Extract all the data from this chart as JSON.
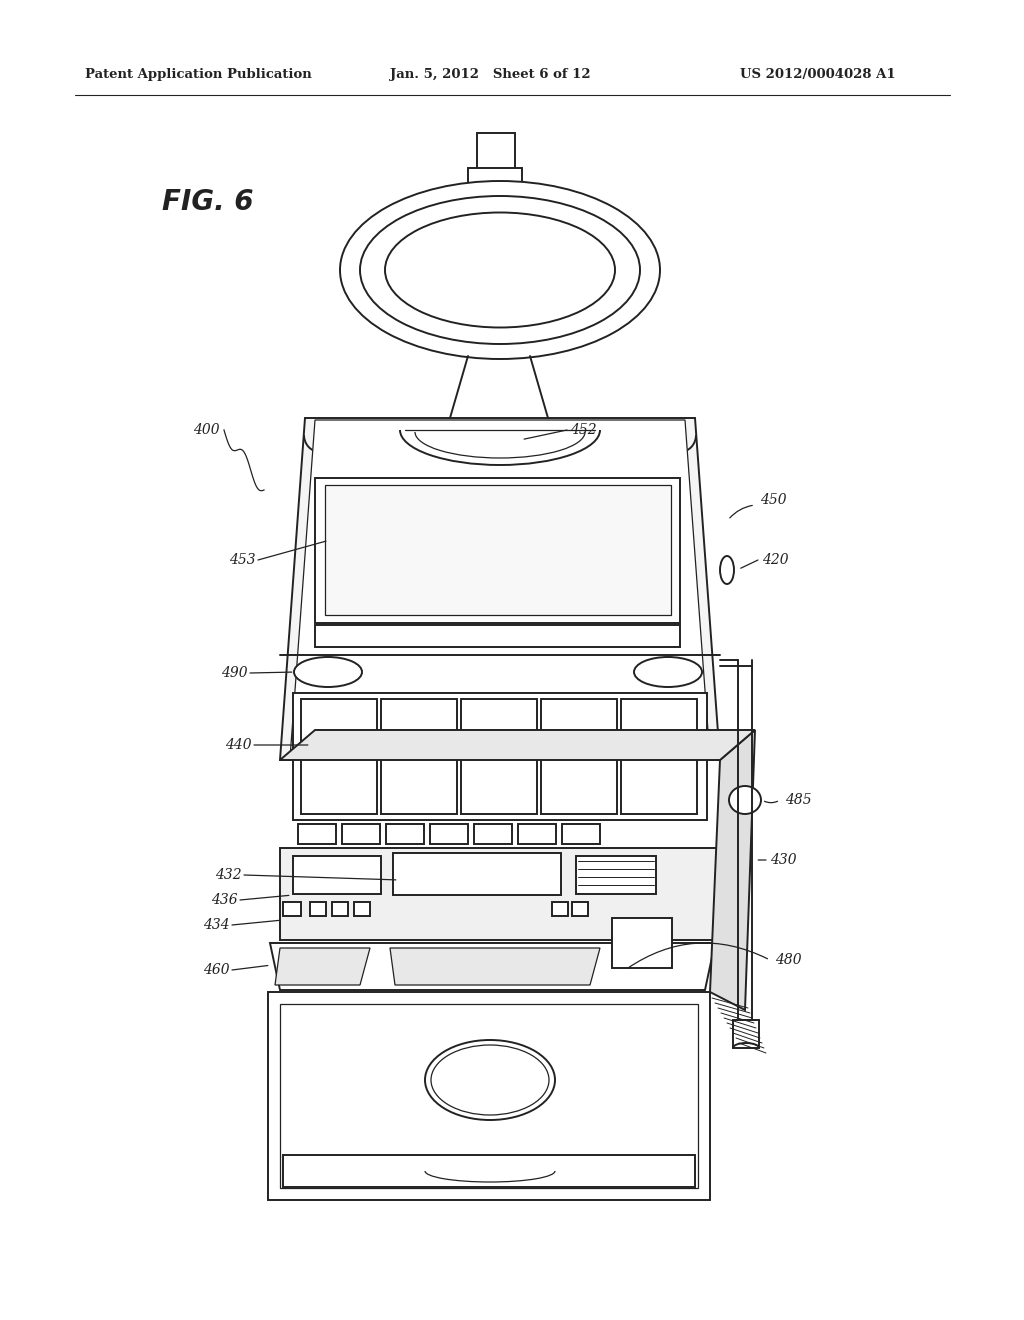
{
  "bg_color": "#ffffff",
  "line_color": "#222222",
  "lw_main": 1.4,
  "lw_thin": 0.9,
  "title_left": "Patent Application Publication",
  "title_center": "Jan. 5, 2012   Sheet 6 of 12",
  "title_right": "US 2012/0004028 A1",
  "fig_label": "FIG. 6"
}
